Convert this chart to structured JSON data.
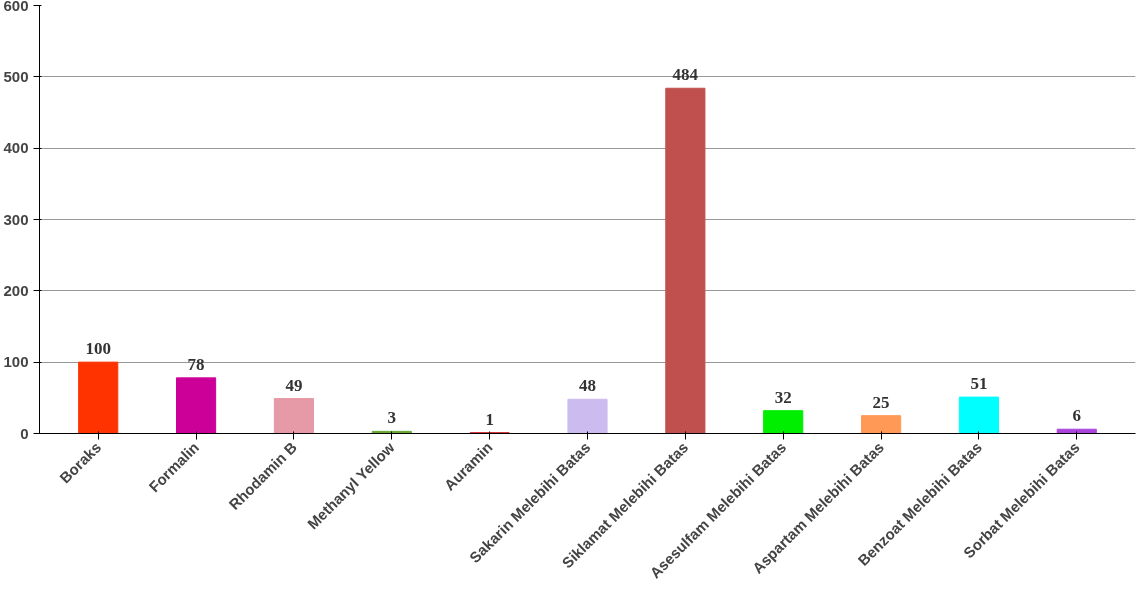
{
  "chart_data": {
    "type": "bar",
    "categories": [
      "Boraks",
      "Formalin",
      "Rhodamin B",
      "Methanyl Yellow",
      "Auramin",
      "Sakarin Melebihi Batas",
      "Siklamat Melebihi Batas",
      "Asesulfam Melebihi Batas",
      "Aspartam Melebihi Batas",
      "Benzoat Melebihi Batas",
      "Sorbat Melebihi Batas"
    ],
    "values": [
      100,
      78,
      49,
      3,
      1,
      48,
      484,
      32,
      25,
      51,
      6
    ],
    "colors": [
      "#ff3300",
      "#cc0099",
      "#e699a6",
      "#66aa33",
      "#cc0000",
      "#ccbbee",
      "#c0504d",
      "#00ee00",
      "#ff9955",
      "#00ffff",
      "#aa44dd"
    ],
    "ylim": [
      0,
      600
    ],
    "yticks": [
      0,
      100,
      200,
      300,
      400,
      500,
      600
    ],
    "grid": "y",
    "data_labels": true
  }
}
